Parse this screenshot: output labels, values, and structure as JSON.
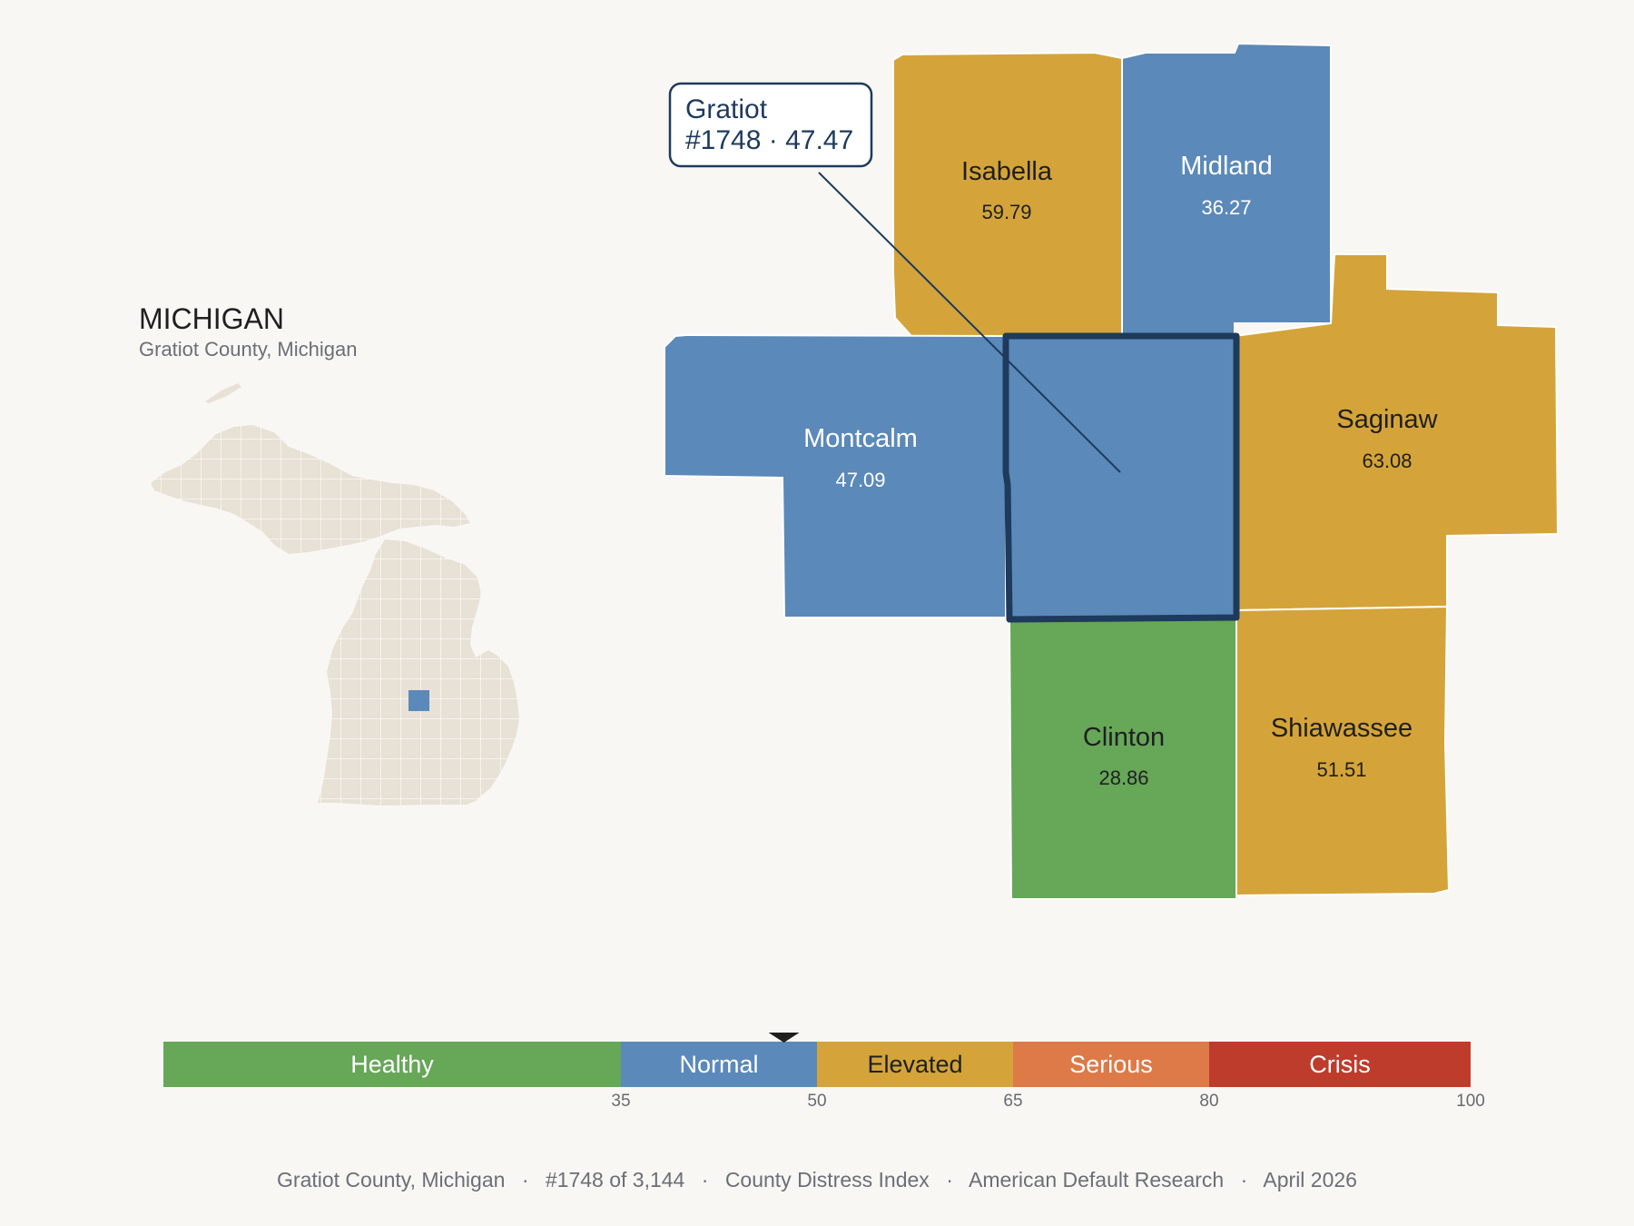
{
  "header": {
    "state_title": "MICHIGAN",
    "state_subtitle": "Gratiot County, Michigan"
  },
  "colors": {
    "healthy": "#66a758",
    "normal": "#5b89b9",
    "elevated": "#d4a43a",
    "serious": "#dd7a48",
    "crisis": "#bd3c2c",
    "outline_focus": "#1e3a5c",
    "inset_land": "#e7e1d6"
  },
  "callout": {
    "line1": "Gratiot",
    "line2": "#1748 · 47.47"
  },
  "counties": [
    {
      "name": "Isabella",
      "value": "59.79",
      "category": "elevated"
    },
    {
      "name": "Midland",
      "value": "36.27",
      "category": "normal"
    },
    {
      "name": "Montcalm",
      "value": "47.09",
      "category": "normal"
    },
    {
      "name": "Gratiot",
      "value": "47.47",
      "category": "normal",
      "focus": true
    },
    {
      "name": "Saginaw",
      "value": "63.08",
      "category": "elevated"
    },
    {
      "name": "Clinton",
      "value": "28.86",
      "category": "healthy"
    },
    {
      "name": "Shiawassee",
      "value": "51.51",
      "category": "elevated"
    }
  ],
  "legend": {
    "min": 0,
    "max": 100,
    "marker_value": 47.47,
    "segments": [
      {
        "label": "Healthy",
        "from": 0,
        "to": 35,
        "category": "healthy"
      },
      {
        "label": "Normal",
        "from": 35,
        "to": 50,
        "category": "normal"
      },
      {
        "label": "Elevated",
        "from": 50,
        "to": 65,
        "category": "elevated"
      },
      {
        "label": "Serious",
        "from": 65,
        "to": 80,
        "category": "serious"
      },
      {
        "label": "Crisis",
        "from": 80,
        "to": 100,
        "category": "crisis"
      }
    ],
    "ticks": [
      "35",
      "50",
      "65",
      "80",
      "100"
    ]
  },
  "footer": {
    "county": "Gratiot County, Michigan",
    "rank": "#1748 of 3,144",
    "index": "County Distress Index",
    "org": "American Default Research",
    "date": "April 2026",
    "separator": "·"
  }
}
